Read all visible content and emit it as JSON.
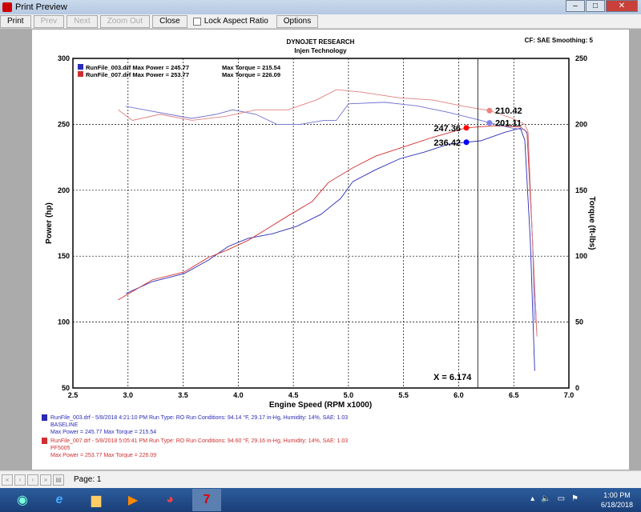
{
  "window": {
    "title": "Print Preview"
  },
  "toolbar": {
    "print": "Print",
    "prev": "Prev",
    "next": "Next",
    "zoom_out": "Zoom Out",
    "close": "Close",
    "lock_aspect": "Lock Aspect Ratio",
    "options": "Options"
  },
  "status": {
    "page": "Page: 1"
  },
  "taskbar": {
    "time": "1:00 PM",
    "date": "6/18/2018"
  },
  "chart_data": {
    "type": "line",
    "title": "DYNOJET RESEARCH",
    "subtitle": "Injen Technology",
    "corner": "CF: SAE  Smoothing: 5",
    "xlabel": "Engine Speed (RPM x1000)",
    "ylabel": "Power (hp)",
    "y2label": "Torque (ft-lbs)",
    "xlim": [
      2.5,
      7.0
    ],
    "ylim": [
      50,
      300
    ],
    "y2lim": [
      0,
      250
    ],
    "xticks": [
      "2.5",
      "3.0",
      "3.5",
      "4.0",
      "4.5",
      "5.0",
      "5.5",
      "6.0",
      "6.5",
      "7.0"
    ],
    "yticks": [
      "50",
      "100",
      "150",
      "200",
      "250",
      "300"
    ],
    "y2ticks": [
      "0",
      "50",
      "100",
      "150",
      "200",
      "250"
    ],
    "grid": true,
    "cursor": {
      "x": 6.174,
      "label": "X = 6.174"
    },
    "legend_top": [
      {
        "text": "RunFile_003.drf Max Power = 245.77",
        "torque": "Max Torque = 215.54",
        "color": "#2b2bb8"
      },
      {
        "text": "RunFile_007.drf Max Power = 253.77",
        "torque": "Max Torque = 226.09",
        "color": "#d03030"
      }
    ],
    "series": [
      {
        "name": "RunFile_003 power",
        "axis": "left",
        "color": "#2b2bb8",
        "x": [
          2.98,
          3.22,
          3.51,
          3.73,
          3.91,
          4.09,
          4.31,
          4.53,
          4.75,
          4.93,
          5.04,
          5.25,
          5.47,
          5.69,
          5.91,
          6.07,
          6.2,
          6.42,
          6.56,
          6.6,
          6.65,
          6.69
        ],
        "y": [
          121.6,
          130.7,
          136.8,
          147,
          157.4,
          163.5,
          167,
          172.6,
          181.7,
          193.8,
          206.6,
          215.7,
          224,
          229,
          235,
          236.4,
          237.5,
          244,
          247,
          238,
          162,
          63
        ]
      },
      {
        "name": "RunFile_007 power",
        "axis": "left",
        "color": "#d03030",
        "x": [
          2.91,
          3.22,
          3.51,
          3.73,
          3.91,
          4.09,
          4.24,
          4.45,
          4.67,
          4.82,
          5.04,
          5.25,
          5.47,
          5.76,
          6.07,
          6.34,
          6.56,
          6.62,
          6.67,
          6.71
        ],
        "y": [
          116.8,
          132,
          138,
          149,
          155,
          162,
          169.6,
          180.5,
          191.4,
          206,
          217,
          226,
          232,
          240,
          247.4,
          249,
          248,
          244,
          162,
          89.5
        ]
      },
      {
        "name": "RunFile_003 torque",
        "axis": "right",
        "color": "#7070d0",
        "x": [
          2.98,
          3.15,
          3.37,
          3.58,
          3.8,
          3.95,
          4.16,
          4.35,
          4.56,
          4.78,
          4.89,
          5.0,
          5.33,
          5.62,
          5.91,
          6.2,
          6.28,
          6.49,
          6.6,
          6.63,
          6.67,
          6.69
        ],
        "y": [
          213.6,
          211,
          207.6,
          204.5,
          207.6,
          211,
          207.6,
          200,
          200,
          203,
          203,
          215.5,
          216.7,
          214,
          209,
          203,
          201.1,
          197,
          196,
          191,
          112,
          51
        ]
      },
      {
        "name": "RunFile_007 torque",
        "axis": "right",
        "color": "#e08080",
        "x": [
          2.91,
          3.04,
          3.29,
          3.58,
          3.88,
          4.16,
          4.45,
          4.71,
          4.89,
          5.11,
          5.47,
          5.76,
          6.05,
          6.28,
          6.49,
          6.6,
          6.63,
          6.67,
          6.71
        ],
        "y": [
          211,
          203,
          207.6,
          203,
          206,
          211,
          211,
          218.5,
          226.3,
          224.5,
          220,
          218.5,
          213.6,
          210.4,
          204.5,
          200,
          194,
          112,
          39
        ]
      }
    ],
    "markers": [
      {
        "x": 6.07,
        "value": 247.36,
        "label": "247.36",
        "axis": "left",
        "color": "#ff0000",
        "side": "left"
      },
      {
        "x": 6.07,
        "value": 236.42,
        "label": "236.42",
        "axis": "left",
        "color": "#0000ff",
        "side": "left"
      },
      {
        "x": 6.28,
        "value": 210.42,
        "label": "210.42",
        "axis": "right",
        "color": "#f08080",
        "side": "right"
      },
      {
        "x": 6.28,
        "value": 201.11,
        "label": "201.11",
        "axis": "right",
        "color": "#8080f0",
        "side": "right"
      }
    ],
    "legend_bottom": [
      {
        "line1": "RunFile_003.drf - 5/8/2018 4:21:10 PM  Run Type: RO  Run Conditions: 94.14 °F, 29.17 in-Hg,  Humidity:  14%, SAE: 1.03",
        "line2": "BASELINE",
        "line3": "Max Power = 245.77  Max Torque = 215.54",
        "color": "#2b2bb8"
      },
      {
        "line1": "RunFile_007.drf - 5/8/2018 5:05:41 PM  Run Type: RO  Run Conditions: 94.60 °F, 29.16 in-Hg,  Humidity:  14%, SAE: 1.03",
        "line2": "PF5005",
        "line3": "Max Power = 253.77  Max Torque = 226.09",
        "color": "#d03030"
      }
    ]
  }
}
